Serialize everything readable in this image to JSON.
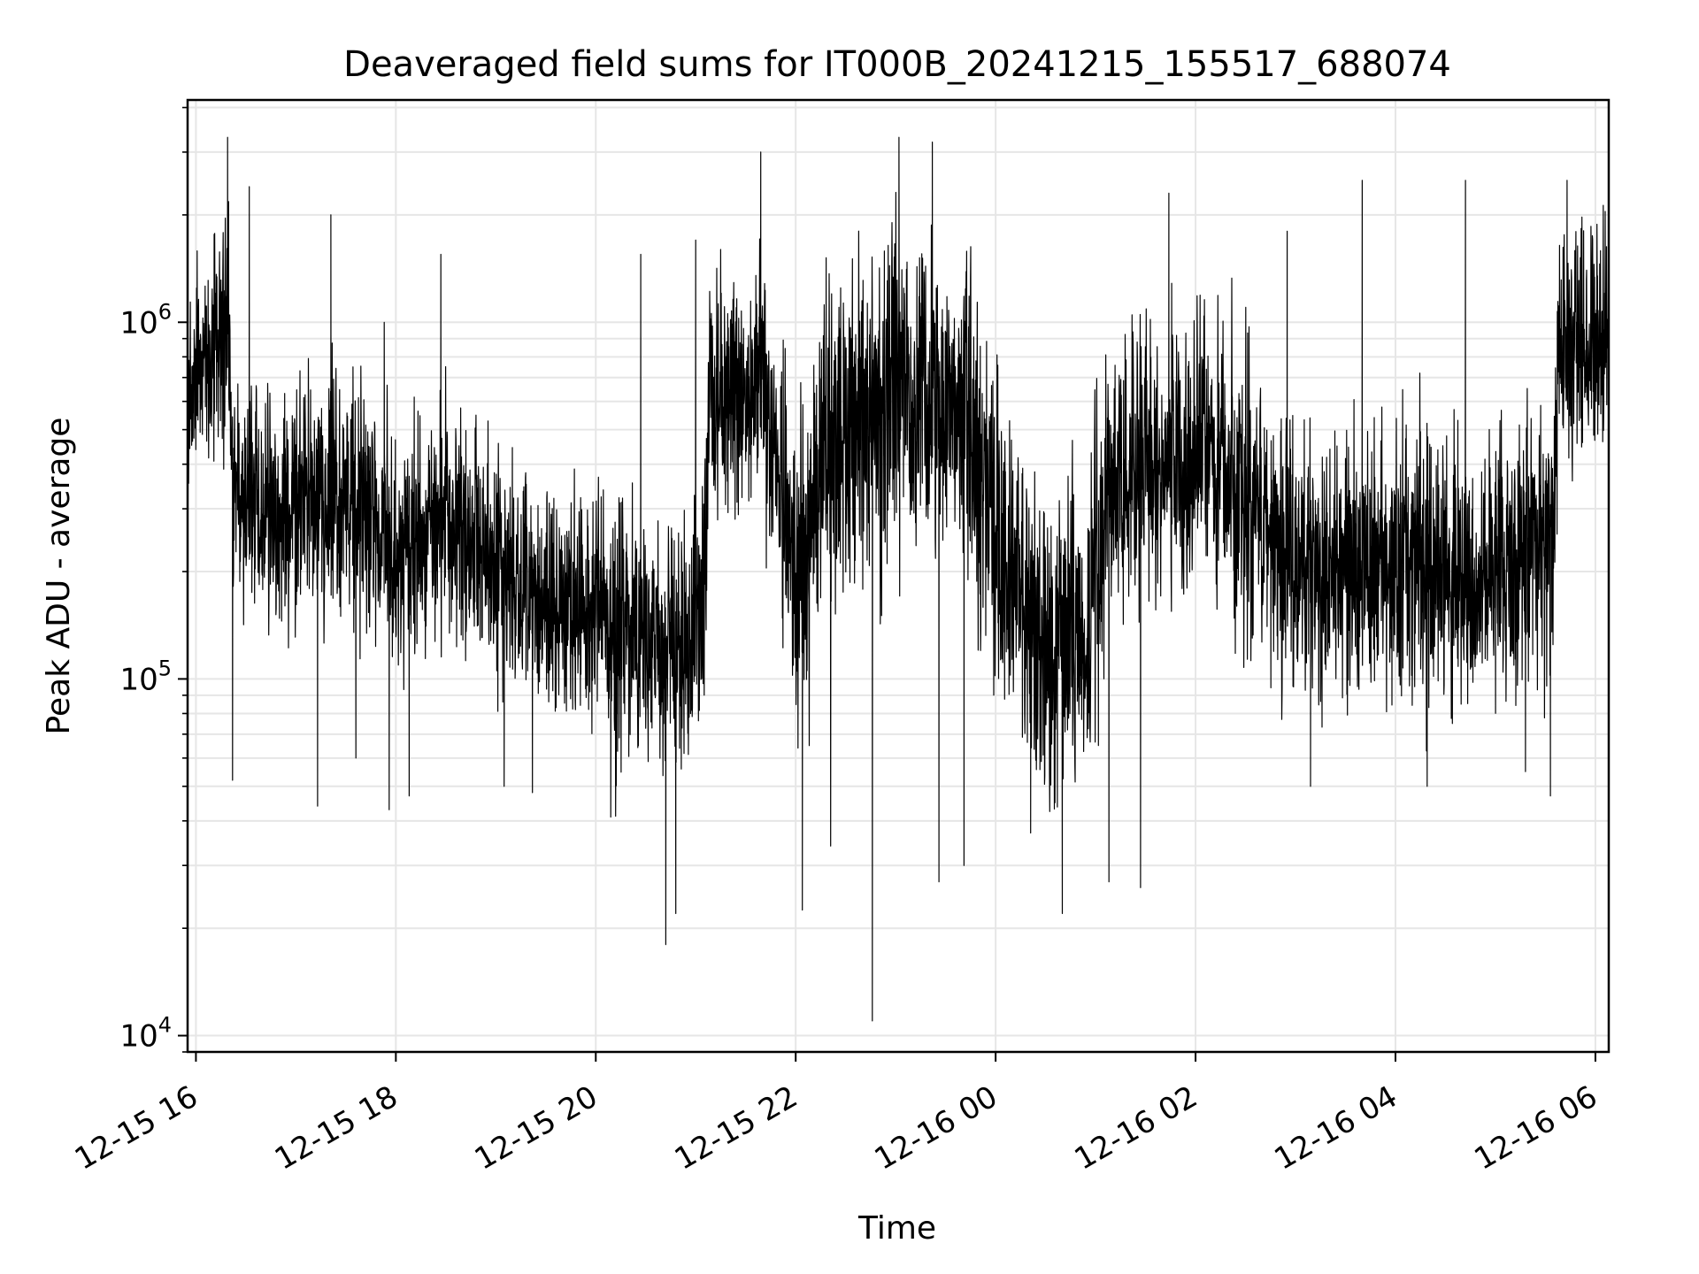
{
  "chart_data": {
    "type": "line",
    "title": "Deaveraged field sums for IT000B_20241215_155517_688074",
    "xlabel": "Time",
    "ylabel": "Peak ADU - average",
    "yscale": "log",
    "ylim": [
      9000,
      4200000
    ],
    "xlim": [
      "2024-12-15T15:55",
      "2024-12-16T06:08"
    ],
    "grid": true,
    "line_color": "#000000",
    "grid_color": "#e6e6e6",
    "x_ticks": [
      {
        "value": "2024-12-15T16:00",
        "label": "12-15 16"
      },
      {
        "value": "2024-12-15T18:00",
        "label": "12-15 18"
      },
      {
        "value": "2024-12-15T20:00",
        "label": "12-15 20"
      },
      {
        "value": "2024-12-15T22:00",
        "label": "12-15 22"
      },
      {
        "value": "2024-12-16T00:00",
        "label": "12-16 00"
      },
      {
        "value": "2024-12-16T02:00",
        "label": "12-16 02"
      },
      {
        "value": "2024-12-16T04:00",
        "label": "12-16 04"
      },
      {
        "value": "2024-12-16T06:00",
        "label": "12-16 06"
      }
    ],
    "y_ticks": [
      {
        "value": 10000,
        "base": "10",
        "exp": "4"
      },
      {
        "value": 100000,
        "base": "10",
        "exp": "5"
      },
      {
        "value": 1000000,
        "base": "10",
        "exp": "6"
      }
    ],
    "series": [
      {
        "name": "",
        "segments": [
          {
            "t": "2024-12-15T15:56",
            "median": 700000,
            "spread": 1.7
          },
          {
            "t": "2024-12-15T16:10",
            "median": 800000,
            "spread": 1.7
          },
          {
            "t": "2024-12-15T16:20",
            "median": 900000,
            "spread": 1.8
          },
          {
            "t": "2024-12-15T16:22",
            "median": 350000,
            "spread": 1.8
          },
          {
            "t": "2024-12-15T16:45",
            "median": 300000,
            "spread": 1.9
          },
          {
            "t": "2024-12-15T17:15",
            "median": 320000,
            "spread": 1.9
          },
          {
            "t": "2024-12-15T17:45",
            "median": 300000,
            "spread": 1.9
          },
          {
            "t": "2024-12-15T18:00",
            "median": 220000,
            "spread": 1.8
          },
          {
            "t": "2024-12-15T18:30",
            "median": 300000,
            "spread": 1.9
          },
          {
            "t": "2024-12-15T19:00",
            "median": 200000,
            "spread": 1.8
          },
          {
            "t": "2024-12-15T19:40",
            "median": 160000,
            "spread": 1.8
          },
          {
            "t": "2024-12-15T20:10",
            "median": 140000,
            "spread": 1.9
          },
          {
            "t": "2024-12-15T20:40",
            "median": 120000,
            "spread": 2.0
          },
          {
            "t": "2024-12-15T21:05",
            "median": 150000,
            "spread": 1.9
          },
          {
            "t": "2024-12-15T21:08",
            "median": 650000,
            "spread": 1.8
          },
          {
            "t": "2024-12-15T21:40",
            "median": 700000,
            "spread": 1.9
          },
          {
            "t": "2024-12-15T22:00",
            "median": 200000,
            "spread": 2.3
          },
          {
            "t": "2024-12-15T22:20",
            "median": 500000,
            "spread": 2.2
          },
          {
            "t": "2024-12-15T23:00",
            "median": 600000,
            "spread": 2.2
          },
          {
            "t": "2024-12-15T23:40",
            "median": 550000,
            "spread": 2.2
          },
          {
            "t": "2024-12-16T00:00",
            "median": 250000,
            "spread": 2.3
          },
          {
            "t": "2024-12-16T00:30",
            "median": 110000,
            "spread": 2.3
          },
          {
            "t": "2024-12-16T00:55",
            "median": 130000,
            "spread": 2.3
          },
          {
            "t": "2024-12-16T01:10",
            "median": 350000,
            "spread": 2.2
          },
          {
            "t": "2024-12-16T01:45",
            "median": 400000,
            "spread": 2.1
          },
          {
            "t": "2024-12-16T02:15",
            "median": 450000,
            "spread": 2.1
          },
          {
            "t": "2024-12-16T02:45",
            "median": 250000,
            "spread": 2.0
          },
          {
            "t": "2024-12-16T03:15",
            "median": 200000,
            "spread": 2.0
          },
          {
            "t": "2024-12-16T04:00",
            "median": 210000,
            "spread": 2.0
          },
          {
            "t": "2024-12-16T04:45",
            "median": 200000,
            "spread": 2.0
          },
          {
            "t": "2024-12-16T05:35",
            "median": 260000,
            "spread": 2.0
          },
          {
            "t": "2024-12-16T05:38",
            "median": 850000,
            "spread": 1.7
          },
          {
            "t": "2024-12-16T06:08",
            "median": 900000,
            "spread": 1.7
          }
        ],
        "spikes": [
          {
            "t": "2024-12-15T16:19",
            "value": 3300000
          },
          {
            "t": "2024-12-15T16:22",
            "value": 52000
          },
          {
            "t": "2024-12-15T16:32",
            "value": 2400000
          },
          {
            "t": "2024-12-15T17:13",
            "value": 44000
          },
          {
            "t": "2024-12-15T17:21",
            "value": 2000000
          },
          {
            "t": "2024-12-15T17:36",
            "value": 60000
          },
          {
            "t": "2024-12-15T17:53",
            "value": 1000000
          },
          {
            "t": "2024-12-15T17:56",
            "value": 43000
          },
          {
            "t": "2024-12-15T18:08",
            "value": 47000
          },
          {
            "t": "2024-12-15T18:27",
            "value": 1550000
          },
          {
            "t": "2024-12-15T19:05",
            "value": 50000
          },
          {
            "t": "2024-12-15T19:22",
            "value": 48000
          },
          {
            "t": "2024-12-15T20:09",
            "value": 41000
          },
          {
            "t": "2024-12-15T20:27",
            "value": 1550000
          },
          {
            "t": "2024-12-15T20:42",
            "value": 18000
          },
          {
            "t": "2024-12-15T20:48",
            "value": 22000
          },
          {
            "t": "2024-12-15T21:00",
            "value": 1700000
          },
          {
            "t": "2024-12-15T21:39",
            "value": 3000000
          },
          {
            "t": "2024-12-15T22:04",
            "value": 22500
          },
          {
            "t": "2024-12-15T22:21",
            "value": 34000
          },
          {
            "t": "2024-12-15T22:46",
            "value": 11000
          },
          {
            "t": "2024-12-15T23:02",
            "value": 3300000
          },
          {
            "t": "2024-12-15T23:22",
            "value": 3200000
          },
          {
            "t": "2024-12-15T23:26",
            "value": 27000
          },
          {
            "t": "2024-12-15T23:41",
            "value": 30000
          },
          {
            "t": "2024-12-16T00:21",
            "value": 37000
          },
          {
            "t": "2024-12-16T00:40",
            "value": 22000
          },
          {
            "t": "2024-12-16T01:08",
            "value": 27000
          },
          {
            "t": "2024-12-16T01:27",
            "value": 26000
          },
          {
            "t": "2024-12-16T01:44",
            "value": 2300000
          },
          {
            "t": "2024-12-16T02:55",
            "value": 1800000
          },
          {
            "t": "2024-12-16T03:09",
            "value": 50000
          },
          {
            "t": "2024-12-16T03:40",
            "value": 2500000
          },
          {
            "t": "2024-12-16T04:19",
            "value": 50000
          },
          {
            "t": "2024-12-16T04:42",
            "value": 2500000
          },
          {
            "t": "2024-12-16T05:18",
            "value": 55000
          },
          {
            "t": "2024-12-16T05:33",
            "value": 47000
          },
          {
            "t": "2024-12-16T05:43",
            "value": 2500000
          }
        ]
      }
    ]
  }
}
